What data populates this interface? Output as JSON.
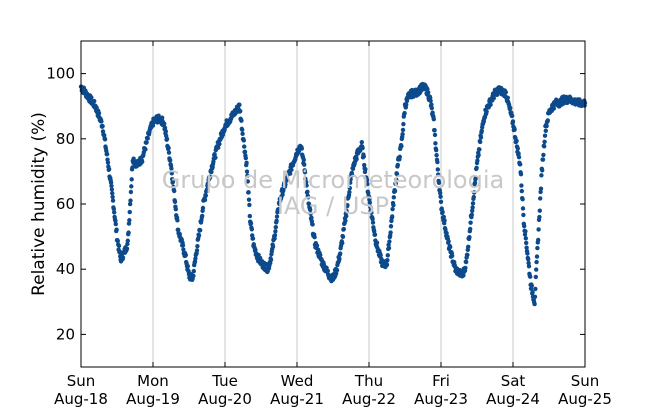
{
  "chart_data": {
    "type": "scatter",
    "ylabel": "Relative humidity (%)",
    "xlabel": "",
    "ylim": [
      10,
      110
    ],
    "xlim": [
      0,
      7
    ],
    "yticks": [
      20,
      40,
      60,
      80,
      100
    ],
    "xticks": [
      {
        "x": 0,
        "day": "Sun",
        "date": "Aug-18"
      },
      {
        "x": 1,
        "day": "Mon",
        "date": "Aug-19"
      },
      {
        "x": 2,
        "day": "Tue",
        "date": "Aug-20"
      },
      {
        "x": 3,
        "day": "Wed",
        "date": "Aug-21"
      },
      {
        "x": 4,
        "day": "Thu",
        "date": "Aug-22"
      },
      {
        "x": 5,
        "day": "Fri",
        "date": "Aug-23"
      },
      {
        "x": 6,
        "day": "Sat",
        "date": "Aug-24"
      },
      {
        "x": 7,
        "day": "Sun",
        "date": "Aug-25"
      }
    ],
    "vertical_grid": true,
    "watermark_lines": [
      "Grupo de Micrometeorologia",
      "IAG / USP"
    ],
    "series": [
      {
        "color": "#0c4a8c",
        "x": [
          0,
          0.1,
          0.2,
          0.3,
          0.38,
          0.45,
          0.5,
          0.55,
          0.6,
          0.65,
          0.72,
          0.78,
          0.85,
          0.95,
          1.0,
          1.05,
          1.1,
          1.15,
          1.25,
          1.3,
          1.35,
          1.4,
          1.45,
          1.5,
          1.55,
          1.6,
          1.65,
          1.7,
          1.8,
          1.9,
          2.0,
          2.1,
          2.2,
          2.3,
          2.35,
          2.4,
          2.45,
          2.5,
          2.55,
          2.6,
          2.65,
          2.7,
          2.75,
          2.8,
          2.9,
          3.0,
          3.05,
          3.1,
          3.15,
          3.2,
          3.25,
          3.3,
          3.35,
          3.4,
          3.45,
          3.5,
          3.55,
          3.6,
          3.65,
          3.7,
          3.75,
          3.8,
          3.85,
          3.9,
          3.95,
          4.0,
          4.05,
          4.1,
          4.15,
          4.2,
          4.25,
          4.3,
          4.35,
          4.4,
          4.45,
          4.5,
          4.55,
          4.6,
          4.65,
          4.7,
          4.75,
          4.8,
          4.85,
          4.9,
          4.95,
          5.0,
          5.1,
          5.2,
          5.3,
          5.35,
          5.4,
          5.45,
          5.5,
          5.55,
          5.6,
          5.65,
          5.7,
          5.75,
          5.8,
          5.9,
          6.0,
          6.1,
          6.15,
          6.2,
          6.25,
          6.3,
          6.35,
          6.4,
          6.45,
          6.5,
          6.55,
          6.6,
          6.65,
          6.7,
          6.75,
          6.8,
          6.9,
          7.0
        ],
        "y": [
          96,
          93,
          90,
          84,
          72,
          60,
          50,
          43,
          45,
          48,
          74,
          72,
          74,
          82,
          85,
          86,
          86,
          85,
          72,
          62,
          52,
          48,
          44,
          38,
          37,
          45,
          52,
          60,
          70,
          78,
          84,
          87,
          90,
          72,
          55,
          47,
          44,
          42,
          41,
          40,
          45,
          52,
          60,
          64,
          70,
          76,
          78,
          72,
          62,
          55,
          48,
          45,
          42,
          40,
          38,
          37,
          40,
          45,
          52,
          60,
          68,
          73,
          76,
          78,
          70,
          62,
          55,
          48,
          44,
          41,
          42,
          52,
          63,
          72,
          78,
          90,
          93,
          94,
          94,
          95,
          96,
          95,
          92,
          85,
          72,
          60,
          48,
          40,
          38,
          42,
          52,
          62,
          72,
          80,
          87,
          90,
          92,
          94,
          95,
          94,
          85,
          72,
          55,
          45,
          35,
          30,
          50,
          70,
          83,
          88,
          90,
          91,
          91,
          92,
          92,
          92,
          91,
          91
        ]
      }
    ]
  }
}
